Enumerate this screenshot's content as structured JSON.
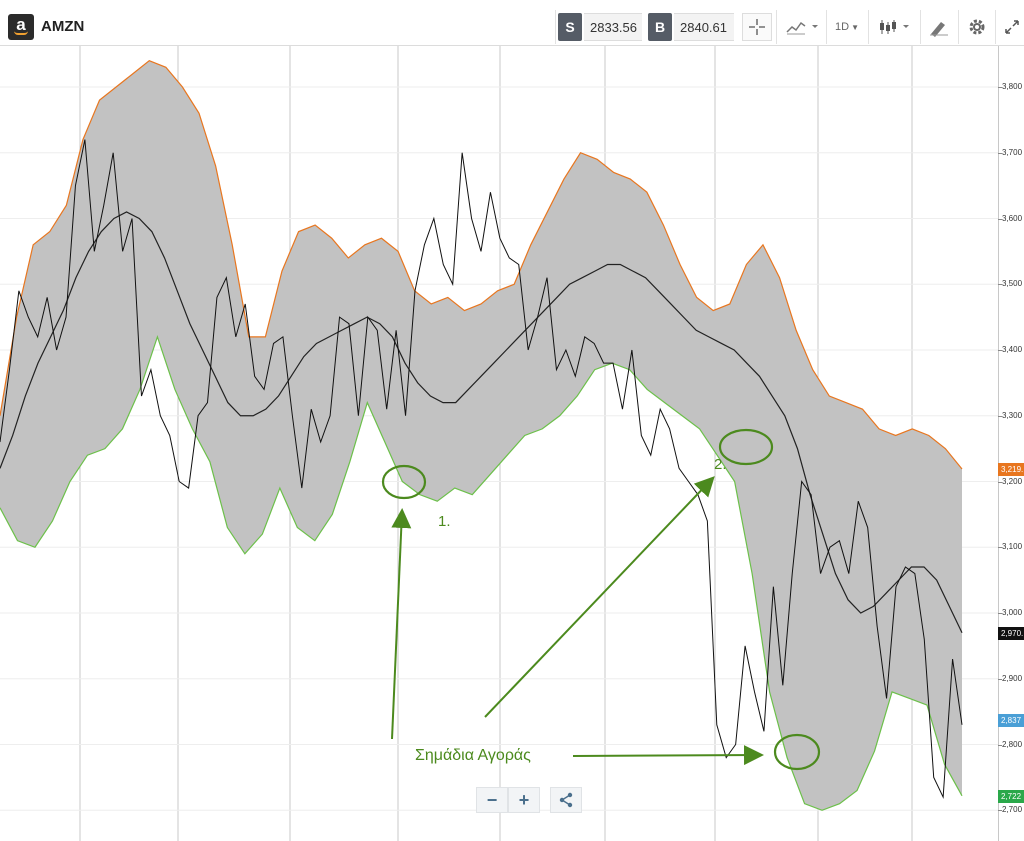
{
  "toolbar": {
    "logo_letter": "a",
    "symbol": "AMZN",
    "sell_label": "S",
    "sell_price": "2833.56",
    "buy_label": "B",
    "buy_price": "2840.61",
    "timeframe": "1D",
    "icons": [
      "crosshair-icon",
      "line-chart-icon",
      "candlestick-icon",
      "draw-tool-icon",
      "gear-icon",
      "expand-icon"
    ]
  },
  "y_axis": {
    "ticks": [
      "3,800",
      "3,700",
      "3,600",
      "3,500",
      "3,400",
      "3,300",
      "3,200",
      "3,100",
      "3,000",
      "2,900",
      "2,800",
      "2,700"
    ],
    "price_labels": [
      {
        "text": "3,219.",
        "color": "#e8761f",
        "value": 3219
      },
      {
        "text": "2,970.",
        "color": "#111111",
        "value": 2970
      },
      {
        "text": "2,837",
        "color": "#4a9fd6",
        "value": 2837
      },
      {
        "text": "2,722",
        "color": "#2aa84a",
        "value": 2722
      }
    ]
  },
  "chart_data": {
    "type": "line",
    "series": [
      {
        "values": [
          3260,
          3370,
          3490,
          3450,
          3420,
          3480,
          3400,
          3450,
          3650,
          3720,
          3550,
          3620,
          3700,
          3550,
          3600,
          3330,
          3370,
          3300,
          3270,
          3200,
          3190,
          3300,
          3320,
          3480,
          3510,
          3420,
          3470,
          3360,
          3340,
          3410,
          3420,
          3300,
          3190,
          3310,
          3260,
          3300,
          3450,
          3440,
          3300,
          3450,
          3430,
          3310,
          3430,
          3300,
          3490,
          3560,
          3600,
          3530,
          3500,
          3700,
          3600,
          3550,
          3640,
          3570,
          3540,
          3530,
          3400,
          3450,
          3510,
          3370,
          3400,
          3360,
          3420,
          3410,
          3380,
          3380,
          3310,
          3400,
          3270,
          3240,
          3310,
          3280,
          3220,
          3200,
          3180,
          3140,
          2830,
          2780,
          2800,
          2950,
          2880,
          2820,
          3040,
          2890,
          3060,
          3200,
          3180,
          3060,
          3100,
          3110,
          3060,
          3170,
          3130,
          2980,
          2870,
          3040,
          3070,
          3060,
          2960,
          2750,
          2720,
          2930,
          2830
        ]
      },
      {
        "values": [
          3220,
          3270,
          3330,
          3380,
          3420,
          3460,
          3510,
          3550,
          3580,
          3600,
          3610,
          3600,
          3580,
          3540,
          3490,
          3440,
          3400,
          3360,
          3320,
          3300,
          3300,
          3310,
          3330,
          3360,
          3390,
          3410,
          3420,
          3430,
          3440,
          3450,
          3440,
          3420,
          3380,
          3350,
          3330,
          3320,
          3320,
          3340,
          3360,
          3380,
          3400,
          3420,
          3440,
          3460,
          3480,
          3500,
          3510,
          3520,
          3530,
          3530,
          3520,
          3510,
          3490,
          3470,
          3450,
          3430,
          3420,
          3410,
          3400,
          3380,
          3360,
          3330,
          3300,
          3250,
          3180,
          3120,
          3060,
          3020,
          3000,
          3010,
          3030,
          3050,
          3070,
          3070,
          3050,
          3010,
          2970
        ]
      },
      {
        "values": [
          3300,
          3450,
          3560,
          3580,
          3620,
          3720,
          3780,
          3800,
          3820,
          3840,
          3830,
          3800,
          3760,
          3680,
          3560,
          3420,
          3420,
          3520,
          3580,
          3590,
          3570,
          3540,
          3560,
          3570,
          3550,
          3490,
          3470,
          3480,
          3460,
          3470,
          3490,
          3500,
          3560,
          3610,
          3660,
          3700,
          3690,
          3670,
          3660,
          3640,
          3590,
          3530,
          3480,
          3460,
          3470,
          3530,
          3560,
          3510,
          3430,
          3370,
          3330,
          3320,
          3310,
          3280,
          3270,
          3280,
          3270,
          3250,
          3219
        ]
      },
      {
        "values": [
          3160,
          3110,
          3100,
          3140,
          3200,
          3240,
          3250,
          3280,
          3340,
          3420,
          3340,
          3280,
          3230,
          3130,
          3090,
          3120,
          3190,
          3130,
          3110,
          3150,
          3230,
          3320,
          3260,
          3200,
          3180,
          3170,
          3190,
          3180,
          3210,
          3240,
          3270,
          3280,
          3300,
          3330,
          3370,
          3380,
          3370,
          3340,
          3320,
          3300,
          3280,
          3240,
          3200,
          3060,
          2880,
          2780,
          2710,
          2700,
          2710,
          2730,
          2790,
          2880,
          2870,
          2860,
          2770,
          2722
        ]
      }
    ]
  },
  "annotations": {
    "label_1": "1.",
    "label_2": "2.",
    "buy_signals": "Σημάδια Αγοράς"
  },
  "controls": {
    "zoom_out": "−",
    "zoom_in": "+"
  }
}
